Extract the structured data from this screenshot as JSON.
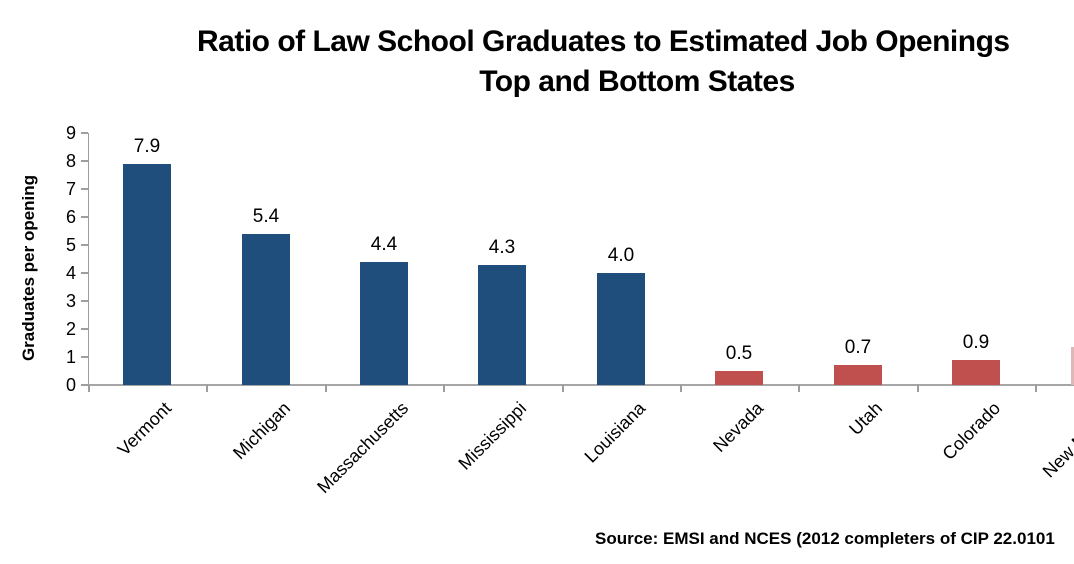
{
  "chart_data": {
    "type": "bar",
    "title": "Ratio of Law School Graduates to Estimated Job Openings",
    "title_line2": "Top and Bottom States",
    "ylabel": "Graduates per opening",
    "xlabel": "",
    "ylim": [
      0,
      9
    ],
    "yticks": [
      0,
      1,
      2,
      3,
      4,
      5,
      6,
      7,
      8,
      9
    ],
    "grid": "off",
    "legend": "none",
    "categories": [
      "Vermont",
      "Michigan",
      "Massachusetts",
      "Mississippi",
      "Louisiana",
      "Nevada",
      "Utah",
      "Colorado",
      "New Mexico"
    ],
    "values": [
      7.9,
      5.4,
      4.4,
      4.3,
      4.0,
      0.5,
      0.7,
      0.9,
      null
    ],
    "value_labels": [
      "7.9",
      "5.4",
      "4.4",
      "4.3",
      "4.0",
      "0.5",
      "0.7",
      "0.9",
      ""
    ],
    "bar_colors": [
      "#1f4e7c",
      "#1f4e7c",
      "#1f4e7c",
      "#1f4e7c",
      "#1f4e7c",
      "#c0504d",
      "#c0504d",
      "#c0504d",
      "#ddb8b6"
    ],
    "series_groups": [
      {
        "name": "top-states",
        "color": "#1f4e7c"
      },
      {
        "name": "bottom-states",
        "color": "#c0504d"
      }
    ],
    "axis_color": "#a6a6a6",
    "source": "Source: EMSI and NCES (2012 completers of CIP 22.0101"
  }
}
